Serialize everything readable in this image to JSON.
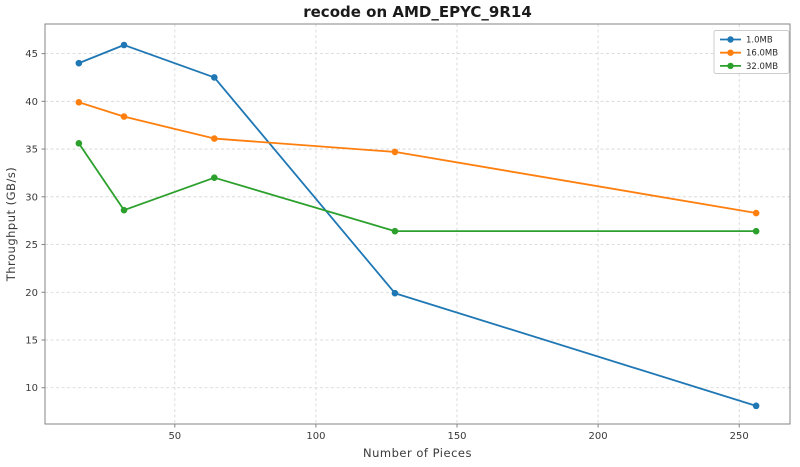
{
  "figure": {
    "background": "#ffffff"
  },
  "chart_data": {
    "type": "line",
    "title": "recode on AMD_EPYC_9R14",
    "xlabel": "Number of Pieces",
    "ylabel": "Throughput (GB/s)",
    "x": [
      16,
      32,
      64,
      128,
      256
    ],
    "series": [
      {
        "name": "1.0MB",
        "color": "#1f77b4",
        "values": [
          44.0,
          45.9,
          42.5,
          19.9,
          8.1
        ]
      },
      {
        "name": "16.0MB",
        "color": "#ff7f0e",
        "values": [
          39.9,
          38.4,
          36.1,
          34.7,
          28.3
        ]
      },
      {
        "name": "32.0MB",
        "color": "#2ca02c",
        "values": [
          35.6,
          28.6,
          32.0,
          26.4,
          26.4
        ]
      }
    ],
    "xlim": [
      4,
      268
    ],
    "ylim": [
      6.2,
      48.1
    ],
    "xticks": [
      50,
      100,
      150,
      200,
      250
    ],
    "yticks": [
      10,
      15,
      20,
      25,
      30,
      35,
      40,
      45
    ],
    "grid": true,
    "grid_style": "dashed",
    "legend_position": "upper right",
    "marker": "circle"
  },
  "style": {
    "grid_color": "#d4d4d4",
    "spine_color": "#848484",
    "tick_color": "#848484",
    "tick_label_color": "#3a3a3a",
    "axis_label_color": "#3a3a3a",
    "title_color": "#1a1a1a",
    "legend_bg": "#ffffff",
    "legend_border_color": "#cccccc"
  }
}
